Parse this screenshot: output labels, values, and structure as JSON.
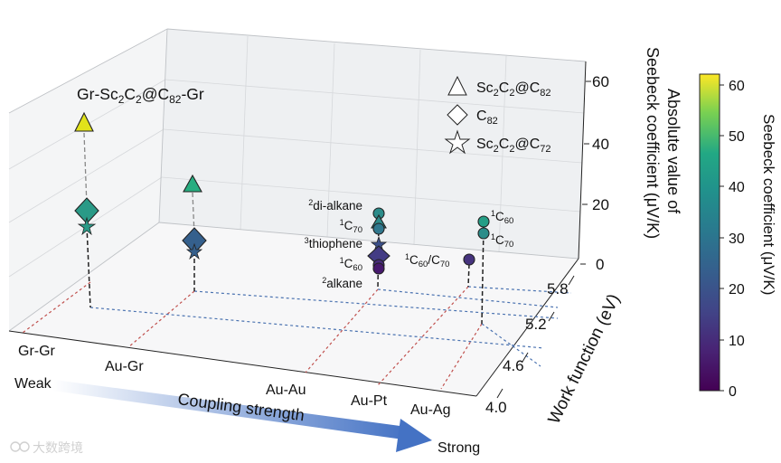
{
  "chart_data": {
    "type": "scatter",
    "subtype": "3d-scatter",
    "x_axis": {
      "categories": [
        "Gr-Gr",
        "Au-Gr",
        "Au-Au",
        "Au-Pt",
        "Au-Ag"
      ],
      "arrow_start": "Weak",
      "arrow_label": "Coupling strength",
      "arrow_end": "Strong"
    },
    "y_axis": {
      "label": "Work function (eV)",
      "ticks": [
        "4.0",
        "4.6",
        "5.2",
        "5.8"
      ],
      "lim": [
        4.0,
        5.8
      ]
    },
    "z_axis": {
      "label_line1": "Absolute value of",
      "label_line2": "Seebeck coefficient (μV/K)",
      "ticks": [
        "0",
        "20",
        "40",
        "60"
      ],
      "lim": [
        0,
        60
      ]
    },
    "colorbar": {
      "label": "Seebeck coefficient (μV/K)",
      "ticks": [
        "0",
        "10",
        "20",
        "30",
        "40",
        "50",
        "60"
      ],
      "lim": [
        0,
        62
      ],
      "colormap": "viridis"
    },
    "legend": [
      {
        "marker": "triangle",
        "label": "Sc₂C₂@C₈₂"
      },
      {
        "marker": "diamond",
        "label": "C₈₂"
      },
      {
        "marker": "star",
        "label": "Sc₂C₂@C₇₂"
      }
    ],
    "annotation_top": "Gr-Sc₂C₂@C₈₂-Gr",
    "points": [
      {
        "electrodes": "Gr-Gr",
        "marker": "triangle",
        "seebeck": 44,
        "color": "#e1e21a"
      },
      {
        "electrodes": "Gr-Gr",
        "marker": "diamond",
        "seebeck": 21,
        "color": "#2a9a87"
      },
      {
        "electrodes": "Gr-Gr",
        "marker": "star",
        "seebeck": 17,
        "color": "#2a9a87"
      },
      {
        "electrodes": "Au-Gr",
        "marker": "triangle",
        "seebeck": 27,
        "color": "#27ad80"
      },
      {
        "electrodes": "Au-Gr",
        "marker": "diamond",
        "seebeck": 10,
        "color": "#35608d"
      },
      {
        "electrodes": "Au-Gr",
        "marker": "star",
        "seebeck": 8,
        "color": "#35608d"
      },
      {
        "electrodes": "Au-Au",
        "marker": "circle",
        "label": "²di-alkane",
        "seebeck": 16,
        "color": "#2c8c8a"
      },
      {
        "electrodes": "Au-Au",
        "marker": "triangle",
        "label": "¹C₇₀",
        "seebeck": 14,
        "color": "#2d8a8a"
      },
      {
        "electrodes": "Au-Au",
        "marker": "circle",
        "label": "",
        "seebeck": 12,
        "color": "#30788e"
      },
      {
        "electrodes": "Au-Au",
        "marker": "star",
        "label": "³thiophene",
        "seebeck": 8,
        "color": "#3b4f8a"
      },
      {
        "electrodes": "Au-Au",
        "marker": "diamond",
        "label": "",
        "seebeck": 3,
        "color": "#433c84"
      },
      {
        "electrodes": "Au-Au",
        "marker": "circle",
        "label": "¹C₆₀",
        "seebeck": 1,
        "color": "#472c7a"
      },
      {
        "electrodes": "Au-Au",
        "marker": "circle",
        "label": "²alkane",
        "seebeck": -4,
        "color": "#471a6e"
      },
      {
        "electrodes": "Au-Pt",
        "marker": "circle",
        "label": "¹C₆₀/C₇₀",
        "seebeck": 1,
        "color": "#46337e"
      },
      {
        "electrodes": "Au-Ag",
        "marker": "circle",
        "label": "¹C₆₀",
        "seebeck": 14,
        "color": "#259e86"
      },
      {
        "electrodes": "Au-Ag",
        "marker": "circle",
        "label": "¹C₇₀",
        "seebeck": 9,
        "color": "#2c8d8a"
      }
    ]
  },
  "watermark": "大数跨境"
}
